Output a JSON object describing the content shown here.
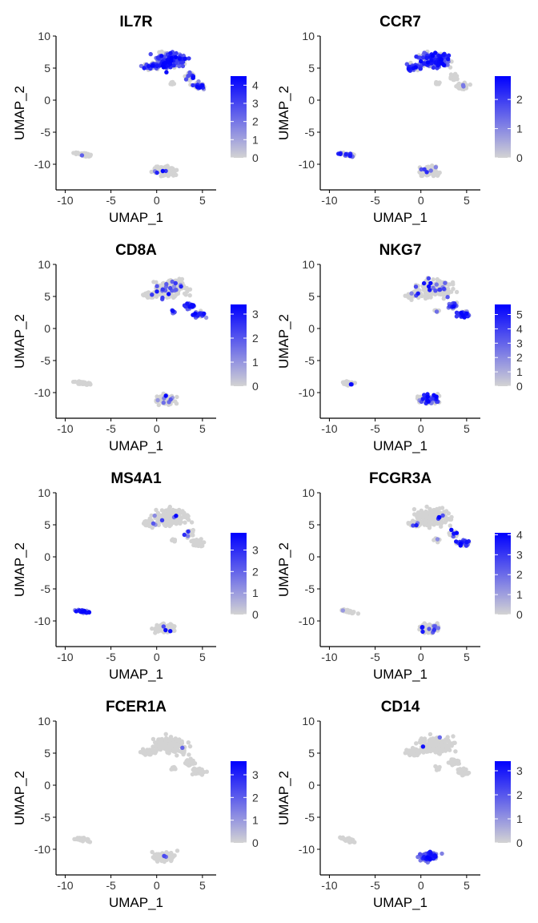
{
  "colors": {
    "low": "#D3D3D3",
    "high": "#0000FF",
    "axis": "#000000"
  },
  "chart_data": [
    {
      "type": "scatter",
      "title": "IL7R",
      "xlabel": "UMAP_1",
      "ylabel": "UMAP_2",
      "xlim": [
        -11,
        6.5
      ],
      "ylim": [
        -14,
        10
      ],
      "xticks": [
        -10,
        -5,
        0,
        5
      ],
      "yticks": [
        -10,
        -5,
        0,
        5,
        10
      ],
      "color_scale": {
        "ticks": [
          0,
          1,
          2,
          3,
          4
        ],
        "max": 4.5
      },
      "expression_profile": {
        "upper_t": 0.7,
        "right_t": 0.45,
        "bcell": 0.05,
        "mono": 0.06,
        "tail": 0.25,
        "seed": 11
      }
    },
    {
      "type": "scatter",
      "title": "CCR7",
      "xlabel": "UMAP_1",
      "ylabel": "UMAP_2",
      "xlim": [
        -11,
        6.5
      ],
      "ylim": [
        -14,
        10
      ],
      "xticks": [
        -10,
        -5,
        0,
        5
      ],
      "yticks": [
        -10,
        -5,
        0,
        5,
        10
      ],
      "color_scale": {
        "ticks": [
          0,
          1,
          2
        ],
        "max": 2.8
      },
      "expression_profile": {
        "upper_t": 0.75,
        "right_t": 0.05,
        "bcell": 0.3,
        "mono": 0.05,
        "tail": 0.0,
        "seed": 23
      }
    },
    {
      "type": "scatter",
      "title": "CD8A",
      "xlabel": "UMAP_1",
      "ylabel": "UMAP_2",
      "xlim": [
        -11,
        6.5
      ],
      "ylim": [
        -14,
        10
      ],
      "xticks": [
        -10,
        -5,
        0,
        5
      ],
      "yticks": [
        -10,
        -5,
        0,
        5,
        10
      ],
      "color_scale": {
        "ticks": [
          0,
          1,
          2,
          3
        ],
        "max": 3.4
      },
      "expression_profile": {
        "upper_t": 0.12,
        "right_t": 0.55,
        "bcell": 0.0,
        "mono": 0.05,
        "tail": 0.85,
        "seed": 37
      }
    },
    {
      "type": "scatter",
      "title": "NKG7",
      "xlabel": "UMAP_1",
      "ylabel": "UMAP_2",
      "xlim": [
        -11,
        6.5
      ],
      "ylim": [
        -14,
        10
      ],
      "xticks": [
        -10,
        -5,
        0,
        5
      ],
      "yticks": [
        -10,
        -5,
        0,
        5,
        10
      ],
      "color_scale": {
        "ticks": [
          0,
          1,
          2,
          3,
          4,
          5
        ],
        "max": 5.7
      },
      "expression_profile": {
        "upper_t": 0.1,
        "right_t": 0.98,
        "bcell": 0.05,
        "mono": 0.25,
        "tail": 0.5,
        "seed": 41
      }
    },
    {
      "type": "scatter",
      "title": "MS4A1",
      "xlabel": "UMAP_1",
      "ylabel": "UMAP_2",
      "xlim": [
        -11,
        6.5
      ],
      "ylim": [
        -14,
        10
      ],
      "xticks": [
        -10,
        -5,
        0,
        5
      ],
      "yticks": [
        -10,
        -5,
        0,
        5,
        10
      ],
      "color_scale": {
        "ticks": [
          0,
          1,
          2,
          3
        ],
        "max": 3.8
      },
      "expression_profile": {
        "upper_t": 0.05,
        "right_t": 0.02,
        "bcell": 0.95,
        "mono": 0.04,
        "tail": 0.05,
        "seed": 53
      }
    },
    {
      "type": "scatter",
      "title": "FCGR3A",
      "xlabel": "UMAP_1",
      "ylabel": "UMAP_2",
      "xlim": [
        -11,
        6.5
      ],
      "ylim": [
        -14,
        10
      ],
      "xticks": [
        -10,
        -5,
        0,
        5
      ],
      "yticks": [
        -10,
        -5,
        0,
        5,
        10
      ],
      "color_scale": {
        "ticks": [
          0,
          1,
          2,
          3,
          4
        ],
        "max": 4.1
      },
      "expression_profile": {
        "upper_t": 0.02,
        "right_t": 0.75,
        "bcell": 0.02,
        "mono": 0.12,
        "tail": 0.15,
        "seed": 67
      }
    },
    {
      "type": "scatter",
      "title": "FCER1A",
      "xlabel": "UMAP_1",
      "ylabel": "UMAP_2",
      "xlim": [
        -11,
        6.5
      ],
      "ylim": [
        -14,
        10
      ],
      "xticks": [
        -10,
        -5,
        0,
        5
      ],
      "yticks": [
        -10,
        -5,
        0,
        5,
        10
      ],
      "color_scale": {
        "ticks": [
          0,
          1,
          2,
          3
        ],
        "max": 3.6
      },
      "expression_profile": {
        "upper_t": 0.02,
        "right_t": 0.0,
        "bcell": 0.0,
        "mono": 0.05,
        "tail": 0.0,
        "seed": 79
      }
    },
    {
      "type": "scatter",
      "title": "CD14",
      "xlabel": "UMAP_1",
      "ylabel": "UMAP_2",
      "xlim": [
        -11,
        6.5
      ],
      "ylim": [
        -14,
        10
      ],
      "xticks": [
        -10,
        -5,
        0,
        5
      ],
      "yticks": [
        -10,
        -5,
        0,
        5,
        10
      ],
      "color_scale": {
        "ticks": [
          0,
          1,
          2,
          3
        ],
        "max": 3.4
      },
      "expression_profile": {
        "upper_t": 0.02,
        "right_t": 0.0,
        "bcell": 0.0,
        "mono": 0.85,
        "tail": 0.0,
        "seed": 97
      }
    }
  ]
}
